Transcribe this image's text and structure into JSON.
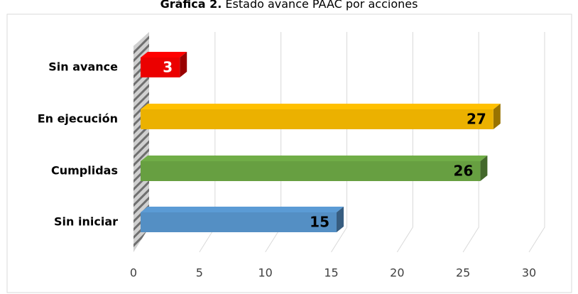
{
  "chart_data": {
    "type": "bar3d",
    "title_prefix": "Gráfica 2.",
    "title": "Estado avance PAAC por acciones",
    "categories": [
      "Sin avance",
      "En ejecución",
      "Cumplidas",
      "Sin iniciar"
    ],
    "values": [
      3,
      27,
      26,
      15
    ],
    "colors": [
      "#ff0000",
      "#ffc000",
      "#70ad47",
      "#5b9bd5"
    ],
    "label_colors": [
      "#ffffff",
      "#000000",
      "#000000",
      "#000000"
    ],
    "xlim": [
      0,
      30
    ],
    "xticks": [
      0,
      5,
      10,
      15,
      20,
      25,
      30
    ],
    "grid": true
  }
}
